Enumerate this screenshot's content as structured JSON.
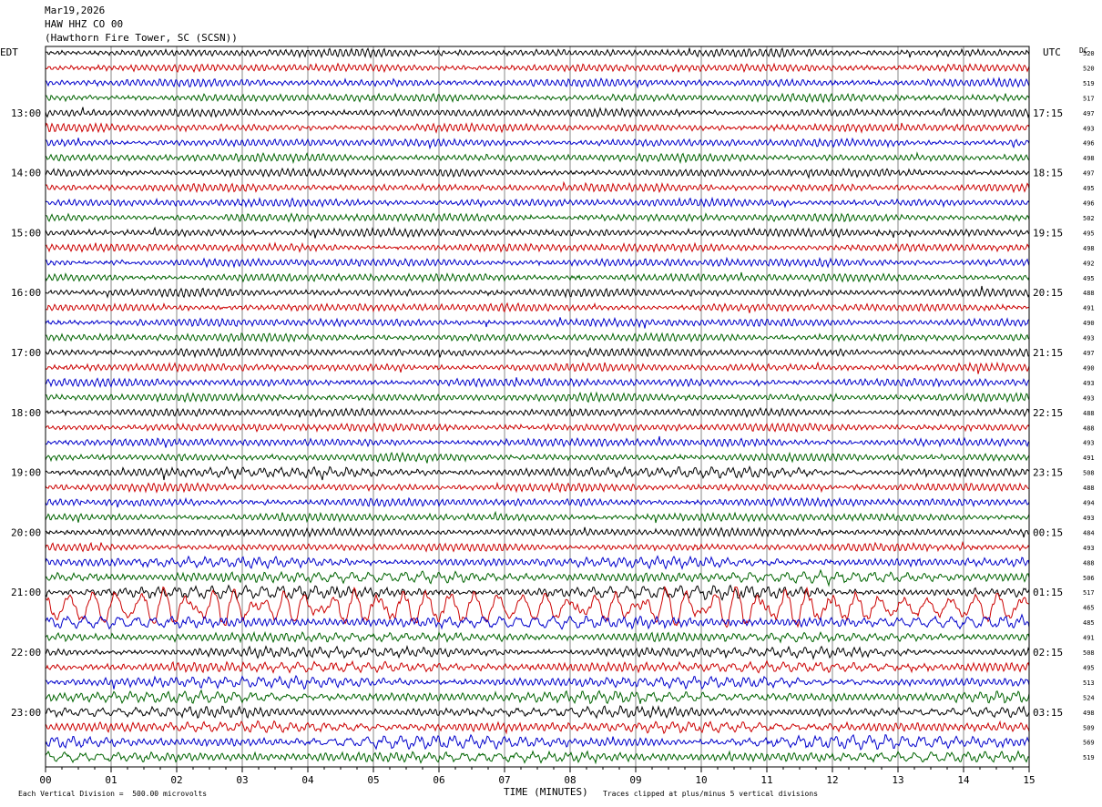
{
  "header": {
    "date": "Mar19,2026",
    "station": "HAW HHZ CO 00",
    "location": "(Hawthorn Fire Tower, SC (SCSN))"
  },
  "left_tz": "EDT",
  "right_tz": "UTC",
  "dc_label": "DC",
  "footer": {
    "scale": "Each Vertical Division =  500.00 microvolts",
    "clip": "Traces clipped at plus/minus 5 vertical divisions"
  },
  "chart_data": {
    "type": "line",
    "title": "",
    "xlabel": "TIME (MINUTES)",
    "ylabel": "",
    "x_ticks": [
      "00",
      "01",
      "02",
      "03",
      "04",
      "05",
      "06",
      "07",
      "08",
      "09",
      "10",
      "11",
      "12",
      "13",
      "14",
      "15"
    ],
    "xlim": [
      0,
      15
    ],
    "grid": true,
    "left_hour_labels": [
      "13:00",
      "14:00",
      "15:00",
      "16:00",
      "17:00",
      "18:00",
      "19:00",
      "20:00",
      "21:00",
      "22:00",
      "23:00"
    ],
    "right_hour_labels": [
      "17:15",
      "18:15",
      "19:15",
      "20:15",
      "21:15",
      "22:15",
      "23:15",
      "00:15",
      "01:15",
      "02:15",
      "03:15"
    ],
    "trace_colors": [
      "#000000",
      "#cc0000",
      "#0000cc",
      "#006400"
    ],
    "dc_offsets": [
      520,
      520,
      519,
      517,
      497,
      493,
      496,
      498,
      497,
      495,
      496,
      502,
      495,
      498,
      492,
      495,
      488,
      491,
      490,
      493,
      497,
      490,
      493,
      493,
      488,
      488,
      493,
      491,
      508,
      488,
      494,
      493,
      484,
      493,
      488,
      506,
      517,
      465,
      485,
      491,
      508,
      495,
      513,
      524,
      498,
      509,
      569,
      519
    ],
    "trace_activity": [
      1,
      1,
      1,
      1,
      1,
      1,
      1,
      1,
      1,
      1,
      1,
      1,
      1,
      1,
      1,
      1,
      1,
      1,
      1,
      1,
      1,
      1,
      1,
      1,
      1,
      1,
      1,
      1,
      2.2,
      1.2,
      1.1,
      1.1,
      1.2,
      1.5,
      2.2,
      2.6,
      3,
      5,
      3,
      2,
      2.2,
      2.4,
      2.5,
      2.6,
      2.3,
      2.4,
      3,
      2.5
    ]
  }
}
